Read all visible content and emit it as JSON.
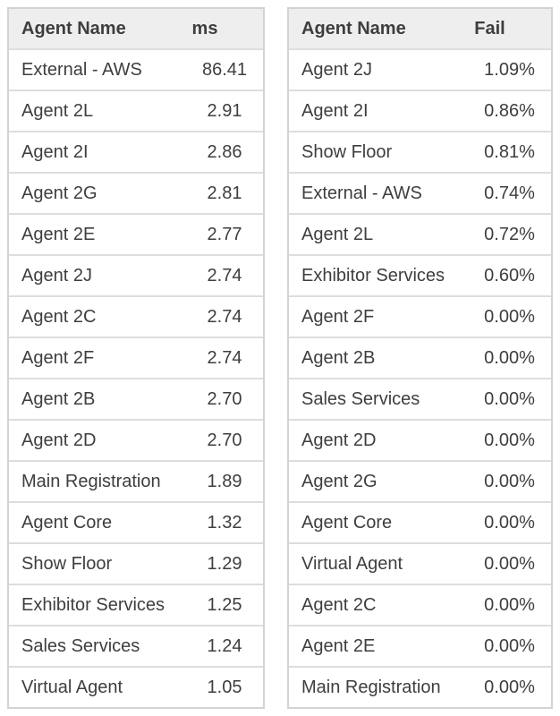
{
  "colors": {
    "header_bg": "#eeeeee",
    "outer_border": "#d3d3d3",
    "row_divider": "#dddddd",
    "text": "#3e3e3e",
    "row_bg": "#ffffff"
  },
  "chart_data": [
    {
      "type": "table",
      "title": "",
      "columns": [
        "Agent Name",
        "ms"
      ],
      "rows": [
        [
          "External - AWS",
          "86.41"
        ],
        [
          "Agent 2L",
          "2.91"
        ],
        [
          "Agent 2I",
          "2.86"
        ],
        [
          "Agent 2G",
          "2.81"
        ],
        [
          "Agent 2E",
          "2.77"
        ],
        [
          "Agent 2J",
          "2.74"
        ],
        [
          "Agent 2C",
          "2.74"
        ],
        [
          "Agent 2F",
          "2.74"
        ],
        [
          "Agent 2B",
          "2.70"
        ],
        [
          "Agent 2D",
          "2.70"
        ],
        [
          "Main Registration",
          "1.89"
        ],
        [
          "Agent Core",
          "1.32"
        ],
        [
          "Show Floor",
          "1.29"
        ],
        [
          "Exhibitor Services",
          "1.25"
        ],
        [
          "Sales Services",
          "1.24"
        ],
        [
          "Virtual Agent",
          "1.05"
        ]
      ]
    },
    {
      "type": "table",
      "title": "",
      "columns": [
        "Agent Name",
        "Fail"
      ],
      "rows": [
        [
          "Agent 2J",
          "1.09%"
        ],
        [
          "Agent 2I",
          "0.86%"
        ],
        [
          "Show Floor",
          "0.81%"
        ],
        [
          "External - AWS",
          "0.74%"
        ],
        [
          "Agent 2L",
          "0.72%"
        ],
        [
          "Exhibitor Services",
          "0.60%"
        ],
        [
          "Agent 2F",
          "0.00%"
        ],
        [
          "Agent 2B",
          "0.00%"
        ],
        [
          "Sales Services",
          "0.00%"
        ],
        [
          "Agent 2D",
          "0.00%"
        ],
        [
          "Agent 2G",
          "0.00%"
        ],
        [
          "Agent Core",
          "0.00%"
        ],
        [
          "Virtual Agent",
          "0.00%"
        ],
        [
          "Agent 2C",
          "0.00%"
        ],
        [
          "Agent 2E",
          "0.00%"
        ],
        [
          "Main Registration",
          "0.00%"
        ]
      ]
    }
  ]
}
